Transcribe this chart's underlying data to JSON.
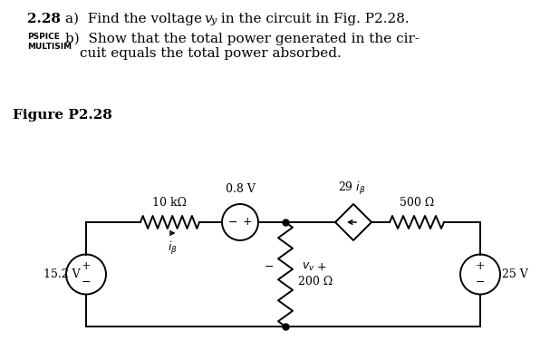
{
  "bg_color": "#ffffff",
  "text_color": "#000000",
  "title_number": "2.28",
  "label_pspice": "PSPICE",
  "label_multisim": "MULTISIM",
  "fig_label": "Figure P2.28",
  "vsource_15_label": "15.2 V",
  "vsource_08_label": "0.8 V",
  "vsource_25_label": "25 V",
  "resistor_10k_label": "10 kΩ",
  "resistor_500_label": "500 Ω",
  "resistor_200_label": "200 Ω",
  "dep_source_label": "29 i",
  "dep_source_sub": "β",
  "iB_label": "i",
  "iB_sub": "β",
  "vy_label": "v",
  "vy_sub": "v"
}
